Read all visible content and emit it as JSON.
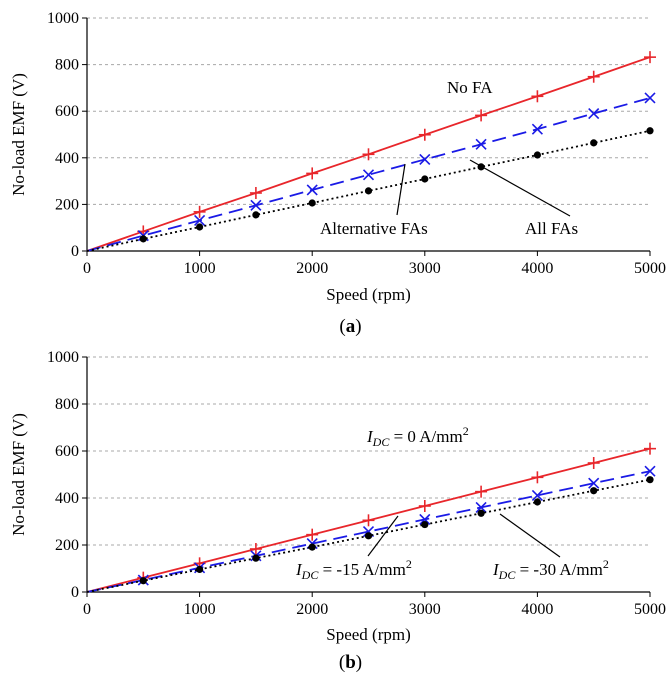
{
  "chart_data": [
    {
      "type": "line",
      "panel_label": "a",
      "xlabel": "Speed (rpm)",
      "ylabel": "No-load EMF (V)",
      "xlim": [
        0,
        5000
      ],
      "ylim": [
        0,
        1000
      ],
      "xticks": [
        "0",
        "1000",
        "2000",
        "3000",
        "4000",
        "5000"
      ],
      "yticks": [
        "0",
        "200",
        "400",
        "600",
        "800",
        "1000"
      ],
      "grid": "horizontal dotted",
      "x": [
        0,
        500,
        1000,
        1500,
        2000,
        2500,
        3000,
        3500,
        4000,
        4500,
        5000
      ],
      "series": [
        {
          "color": "#e8262b",
          "line": "solid",
          "marker": "+",
          "values": [
            0,
            84,
            168,
            249,
            333,
            415,
            499,
            582,
            664,
            748,
            832
          ]
        },
        {
          "color": "#1a1ae6",
          "line": "dashed",
          "marker": "x",
          "values": [
            0,
            66,
            131,
            196,
            262,
            327,
            393,
            458,
            523,
            590,
            657
          ]
        },
        {
          "color": "#000000",
          "line": "dotted",
          "marker": "dot",
          "values": [
            0,
            52,
            103,
            155,
            206,
            258,
            309,
            361,
            412,
            464,
            516
          ]
        }
      ],
      "annotations": [
        {
          "text": "No FA"
        },
        {
          "text": "Alternative FAs"
        },
        {
          "text": "All FAs"
        }
      ]
    },
    {
      "type": "line",
      "panel_label": "b",
      "xlabel": "Speed (rpm)",
      "ylabel": "No-load EMF (V)",
      "xlim": [
        0,
        5000
      ],
      "ylim": [
        0,
        1000
      ],
      "xticks": [
        "0",
        "1000",
        "2000",
        "3000",
        "4000",
        "5000"
      ],
      "yticks": [
        "0",
        "200",
        "400",
        "600",
        "800",
        "1000"
      ],
      "grid": "horizontal dotted",
      "x": [
        0,
        500,
        1000,
        1500,
        2000,
        2500,
        3000,
        3500,
        4000,
        4500,
        5000
      ],
      "series": [
        {
          "color": "#e8262b",
          "line": "solid",
          "marker": "+",
          "values": [
            0,
            61,
            122,
            183,
            244,
            305,
            366,
            427,
            488,
            549,
            610
          ]
        },
        {
          "color": "#1a1ae6",
          "line": "dashed",
          "marker": "x",
          "values": [
            0,
            51,
            103,
            154,
            206,
            257,
            309,
            360,
            411,
            463,
            514
          ]
        },
        {
          "color": "#000000",
          "line": "dotted",
          "marker": "dot",
          "values": [
            0,
            48,
            96,
            144,
            191,
            239,
            287,
            335,
            383,
            431,
            478
          ]
        }
      ],
      "annotations": [
        {
          "var": "I",
          "sub": "DC",
          "rest": " = 0 A/mm",
          "sup": "2"
        },
        {
          "var": "I",
          "sub": "DC",
          "rest": " = -15 A/mm",
          "sup": "2"
        },
        {
          "var": "I",
          "sub": "DC",
          "rest": " = -30 A/mm",
          "sup": "2"
        }
      ]
    }
  ]
}
